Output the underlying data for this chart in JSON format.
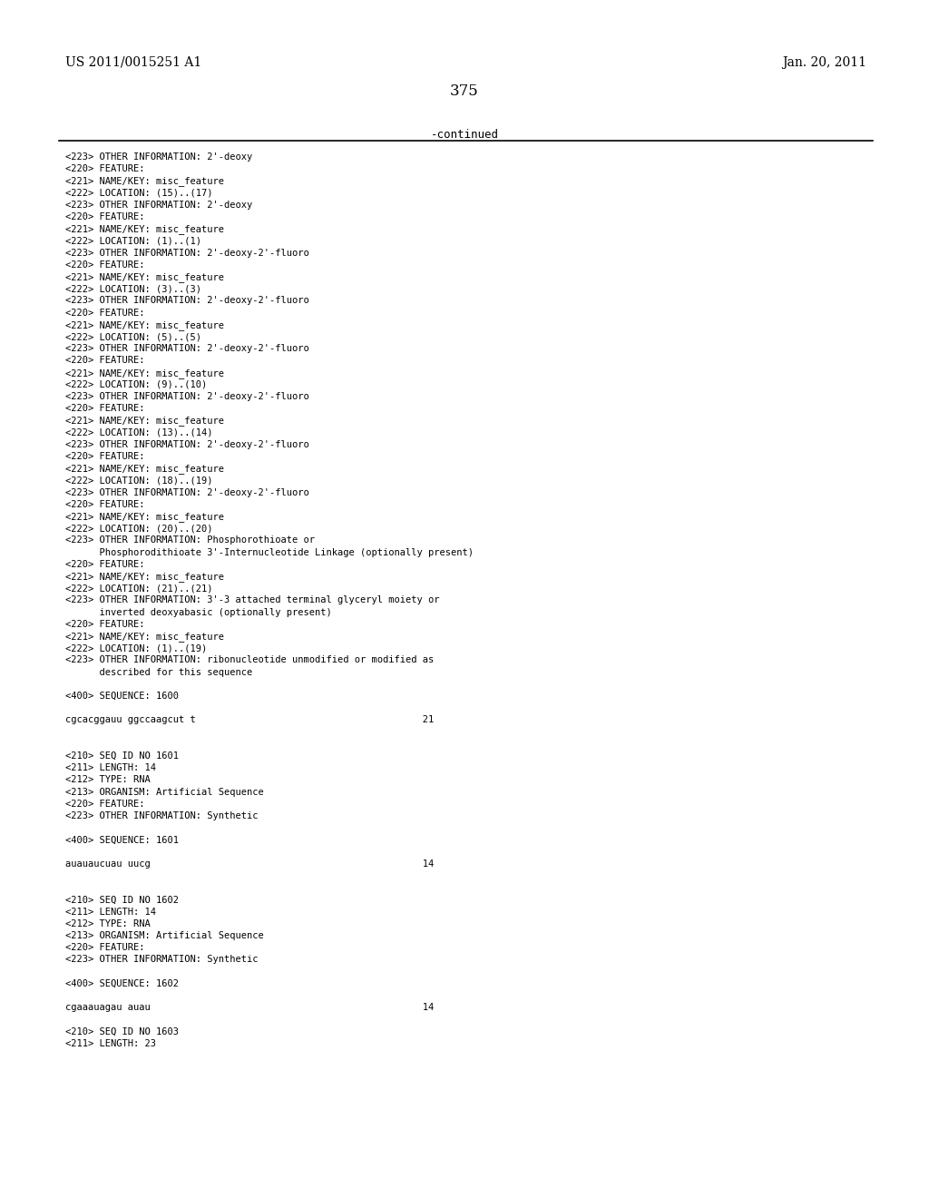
{
  "header_left": "US 2011/0015251 A1",
  "header_right": "Jan. 20, 2011",
  "page_number": "375",
  "continued_text": "-continued",
  "background_color": "#ffffff",
  "text_color": "#000000",
  "lines": [
    "<223> OTHER INFORMATION: 2'-deoxy",
    "<220> FEATURE:",
    "<221> NAME/KEY: misc_feature",
    "<222> LOCATION: (15)..(17)",
    "<223> OTHER INFORMATION: 2'-deoxy",
    "<220> FEATURE:",
    "<221> NAME/KEY: misc_feature",
    "<222> LOCATION: (1)..(1)",
    "<223> OTHER INFORMATION: 2'-deoxy-2'-fluoro",
    "<220> FEATURE:",
    "<221> NAME/KEY: misc_feature",
    "<222> LOCATION: (3)..(3)",
    "<223> OTHER INFORMATION: 2'-deoxy-2'-fluoro",
    "<220> FEATURE:",
    "<221> NAME/KEY: misc_feature",
    "<222> LOCATION: (5)..(5)",
    "<223> OTHER INFORMATION: 2'-deoxy-2'-fluoro",
    "<220> FEATURE:",
    "<221> NAME/KEY: misc_feature",
    "<222> LOCATION: (9)..(10)",
    "<223> OTHER INFORMATION: 2'-deoxy-2'-fluoro",
    "<220> FEATURE:",
    "<221> NAME/KEY: misc_feature",
    "<222> LOCATION: (13)..(14)",
    "<223> OTHER INFORMATION: 2'-deoxy-2'-fluoro",
    "<220> FEATURE:",
    "<221> NAME/KEY: misc_feature",
    "<222> LOCATION: (18)..(19)",
    "<223> OTHER INFORMATION: 2'-deoxy-2'-fluoro",
    "<220> FEATURE:",
    "<221> NAME/KEY: misc_feature",
    "<222> LOCATION: (20)..(20)",
    "<223> OTHER INFORMATION: Phosphorothioate or",
    "      Phosphorodithioate 3'-Internucleotide Linkage (optionally present)",
    "<220> FEATURE:",
    "<221> NAME/KEY: misc_feature",
    "<222> LOCATION: (21)..(21)",
    "<223> OTHER INFORMATION: 3'-3 attached terminal glyceryl moiety or",
    "      inverted deoxyabasic (optionally present)",
    "<220> FEATURE:",
    "<221> NAME/KEY: misc_feature",
    "<222> LOCATION: (1)..(19)",
    "<223> OTHER INFORMATION: ribonucleotide unmodified or modified as",
    "      described for this sequence",
    "",
    "<400> SEQUENCE: 1600",
    "",
    "cgcacggauu ggccaagcut t                                        21",
    "",
    "",
    "<210> SEQ ID NO 1601",
    "<211> LENGTH: 14",
    "<212> TYPE: RNA",
    "<213> ORGANISM: Artificial Sequence",
    "<220> FEATURE:",
    "<223> OTHER INFORMATION: Synthetic",
    "",
    "<400> SEQUENCE: 1601",
    "",
    "auauaucuau uucg                                                14",
    "",
    "",
    "<210> SEQ ID NO 1602",
    "<211> LENGTH: 14",
    "<212> TYPE: RNA",
    "<213> ORGANISM: Artificial Sequence",
    "<220> FEATURE:",
    "<223> OTHER INFORMATION: Synthetic",
    "",
    "<400> SEQUENCE: 1602",
    "",
    "cgaaauagau auau                                                14",
    "",
    "<210> SEQ ID NO 1603",
    "<211> LENGTH: 23"
  ]
}
